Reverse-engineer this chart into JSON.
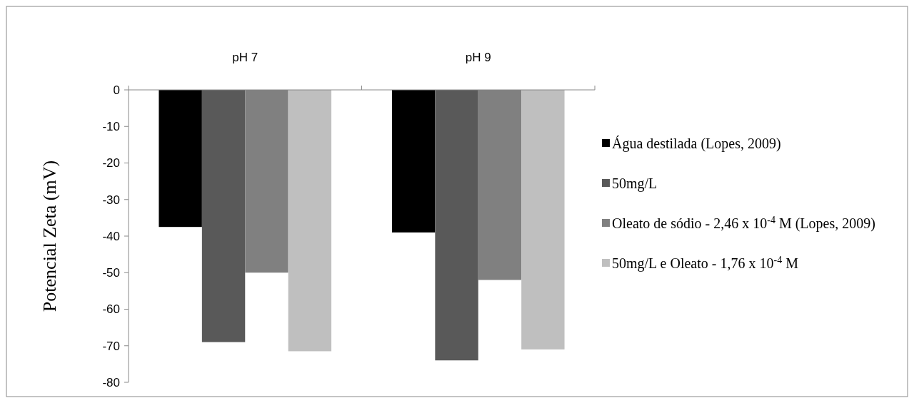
{
  "chart_data": {
    "type": "bar",
    "categories": [
      "pH 7",
      "pH 9"
    ],
    "ylabel": "Potencial Zeta (mV)",
    "ylim": [
      -80,
      0
    ],
    "yticks": [
      -80,
      -70,
      -60,
      -50,
      -40,
      -30,
      -20,
      -10,
      0
    ],
    "grid": false,
    "legend": "right",
    "series": [
      {
        "name": "Água destilada (Lopes, 2009)",
        "color": "#000000",
        "values": [
          -37.5,
          -39
        ]
      },
      {
        "name": "50mg/L",
        "color": "#595959",
        "values": [
          -69,
          -74
        ]
      },
      {
        "name": "Oleato de sódio - 2,46 x 10$^{-4}$ M (Lopes, 2009)",
        "color": "#808080",
        "values": [
          -50,
          -52
        ]
      },
      {
        "name": "50mg/L e Oleato - 1,76 x 10$^{-4}$ M",
        "color": "#bfbfbf",
        "values": [
          -71.5,
          -71
        ]
      }
    ]
  }
}
